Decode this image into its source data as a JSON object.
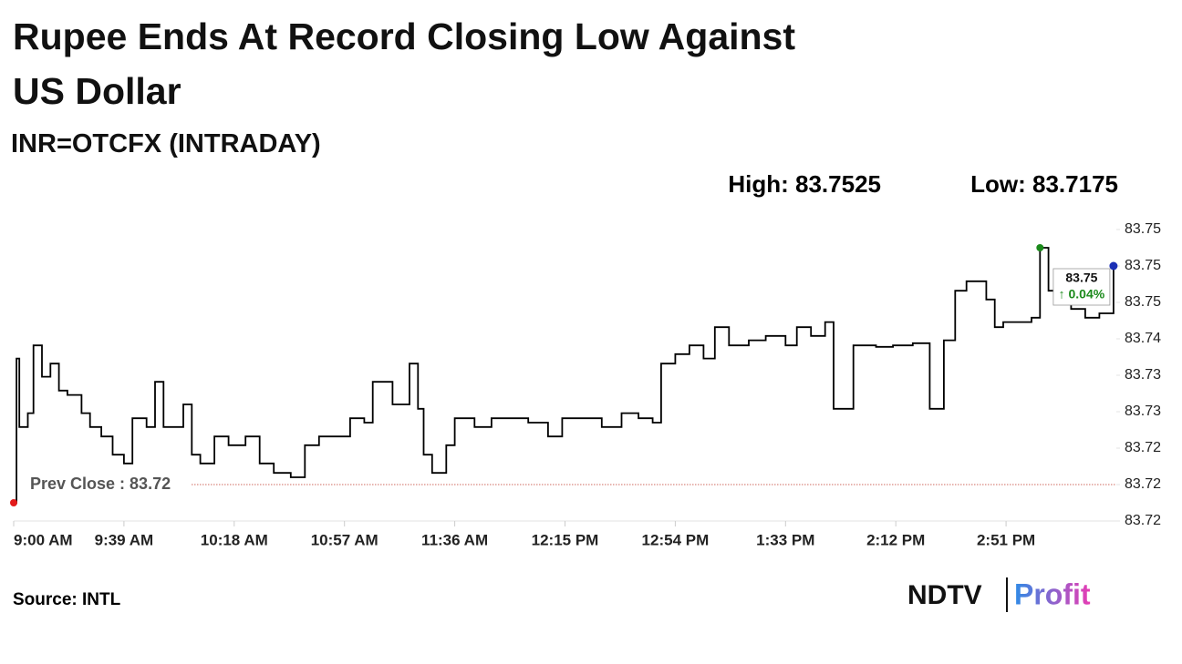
{
  "chart_data": {
    "type": "line",
    "title": "Rupee Ends At Record Closing Low Against US Dollar",
    "subtitle": "INR=OTCFX (INTRADAY)",
    "high": {
      "label": "High: 83.7525",
      "value": 83.7525
    },
    "low": {
      "label": "Low: 83.7175",
      "value": 83.7175
    },
    "prev_close": {
      "label": "Prev Close : 83.72",
      "value": 83.72
    },
    "last_label": "83.75",
    "change_label": "↑ 0.04%",
    "source": "Source: INTL",
    "logo": {
      "brand": "NDTV",
      "product": "Profit"
    },
    "color": "#000000",
    "x": [
      "9:00 AM",
      "9:01 AM",
      "9:02 AM",
      "9:05 AM",
      "9:07 AM",
      "9:10 AM",
      "9:13 AM",
      "9:16 AM",
      "9:19 AM",
      "9:24 AM",
      "9:27 AM",
      "9:31 AM",
      "9:35 AM",
      "9:39 AM",
      "9:42 AM",
      "9:47 AM",
      "9:50 AM",
      "9:53 AM",
      "10:00 AM",
      "10:03 AM",
      "10:06 AM",
      "10:11 AM",
      "10:16 AM",
      "10:22 AM",
      "10:27 AM",
      "10:32 AM",
      "10:38 AM",
      "10:43 AM",
      "10:48 AM",
      "10:55 AM",
      "10:59 AM",
      "11:04 AM",
      "11:07 AM",
      "11:14 AM",
      "11:20 AM",
      "11:23 AM",
      "11:25 AM",
      "11:28 AM",
      "11:33 AM",
      "11:36 AM",
      "11:43 AM",
      "11:49 AM",
      "11:56 AM",
      "12:02 PM",
      "12:09 PM",
      "12:14 PM",
      "12:22 PM",
      "12:28 PM",
      "12:35 PM",
      "12:41 PM",
      "12:46 PM",
      "12:49 PM",
      "12:54 PM",
      "12:59 PM",
      "1:04 PM",
      "1:08 PM",
      "1:13 PM",
      "1:20 PM",
      "1:26 PM",
      "1:33 PM",
      "1:37 PM",
      "1:42 PM",
      "1:47 PM",
      "1:50 PM",
      "1:57 PM",
      "2:05 PM",
      "2:11 PM",
      "2:18 PM",
      "2:24 PM",
      "2:29 PM",
      "2:33 PM",
      "2:37 PM",
      "2:44 PM",
      "2:47 PM",
      "2:50 PM",
      "2:55 PM",
      "3:00 PM",
      "3:03 PM",
      "3:06 PM",
      "3:11 PM",
      "3:14 PM",
      "3:19 PM",
      "3:24 PM",
      "3:29 PM"
    ],
    "values": [
      83.7175,
      83.7373,
      83.7279,
      83.7298,
      83.7391,
      83.7348,
      83.7366,
      83.7329,
      83.7323,
      83.7298,
      83.7279,
      83.7266,
      83.7241,
      83.7229,
      83.7291,
      83.7279,
      83.7341,
      83.7279,
      83.731,
      83.7241,
      83.7229,
      83.7266,
      83.7254,
      83.7266,
      83.7229,
      83.7216,
      83.721,
      83.7254,
      83.7266,
      83.7266,
      83.7291,
      83.7285,
      83.7341,
      83.731,
      83.7366,
      83.7304,
      83.7241,
      83.7216,
      83.7254,
      83.7291,
      83.7279,
      83.7291,
      83.7291,
      83.7285,
      83.7266,
      83.7291,
      83.7291,
      83.7279,
      83.7298,
      83.7291,
      83.7285,
      83.7366,
      83.7379,
      83.7391,
      83.7373,
      83.7416,
      83.7391,
      83.7398,
      83.7404,
      83.7391,
      83.7416,
      83.7404,
      83.7423,
      83.7304,
      83.7391,
      83.7389,
      83.7391,
      83.7394,
      83.7304,
      83.7398,
      83.7466,
      83.7479,
      83.7454,
      83.7416,
      83.7423,
      83.7423,
      83.7429,
      83.7525,
      83.7466,
      83.7491,
      83.7441,
      83.7429,
      83.7435,
      83.75
    ],
    "xlim": [
      "9:00 AM",
      "3:30 PM"
    ],
    "xticks": [
      "9:00 AM",
      "9:39 AM",
      "10:18 AM",
      "10:57 AM",
      "11:36 AM",
      "12:15 PM",
      "12:54 PM",
      "1:33 PM",
      "2:12 PM",
      "2:51 PM"
    ],
    "ylim": [
      83.715,
      83.755
    ],
    "yticks": [
      {
        "value": 83.715,
        "label": "83.72"
      },
      83.72,
      {
        "value": 83.725,
        "label": "83.72"
      },
      83.73,
      {
        "value": 83.735,
        "label": "83.73"
      },
      83.74,
      {
        "value": 83.745,
        "label": "83.75"
      },
      83.75,
      {
        "value": 83.755,
        "label": "83.75"
      }
    ],
    "grid": false
  }
}
